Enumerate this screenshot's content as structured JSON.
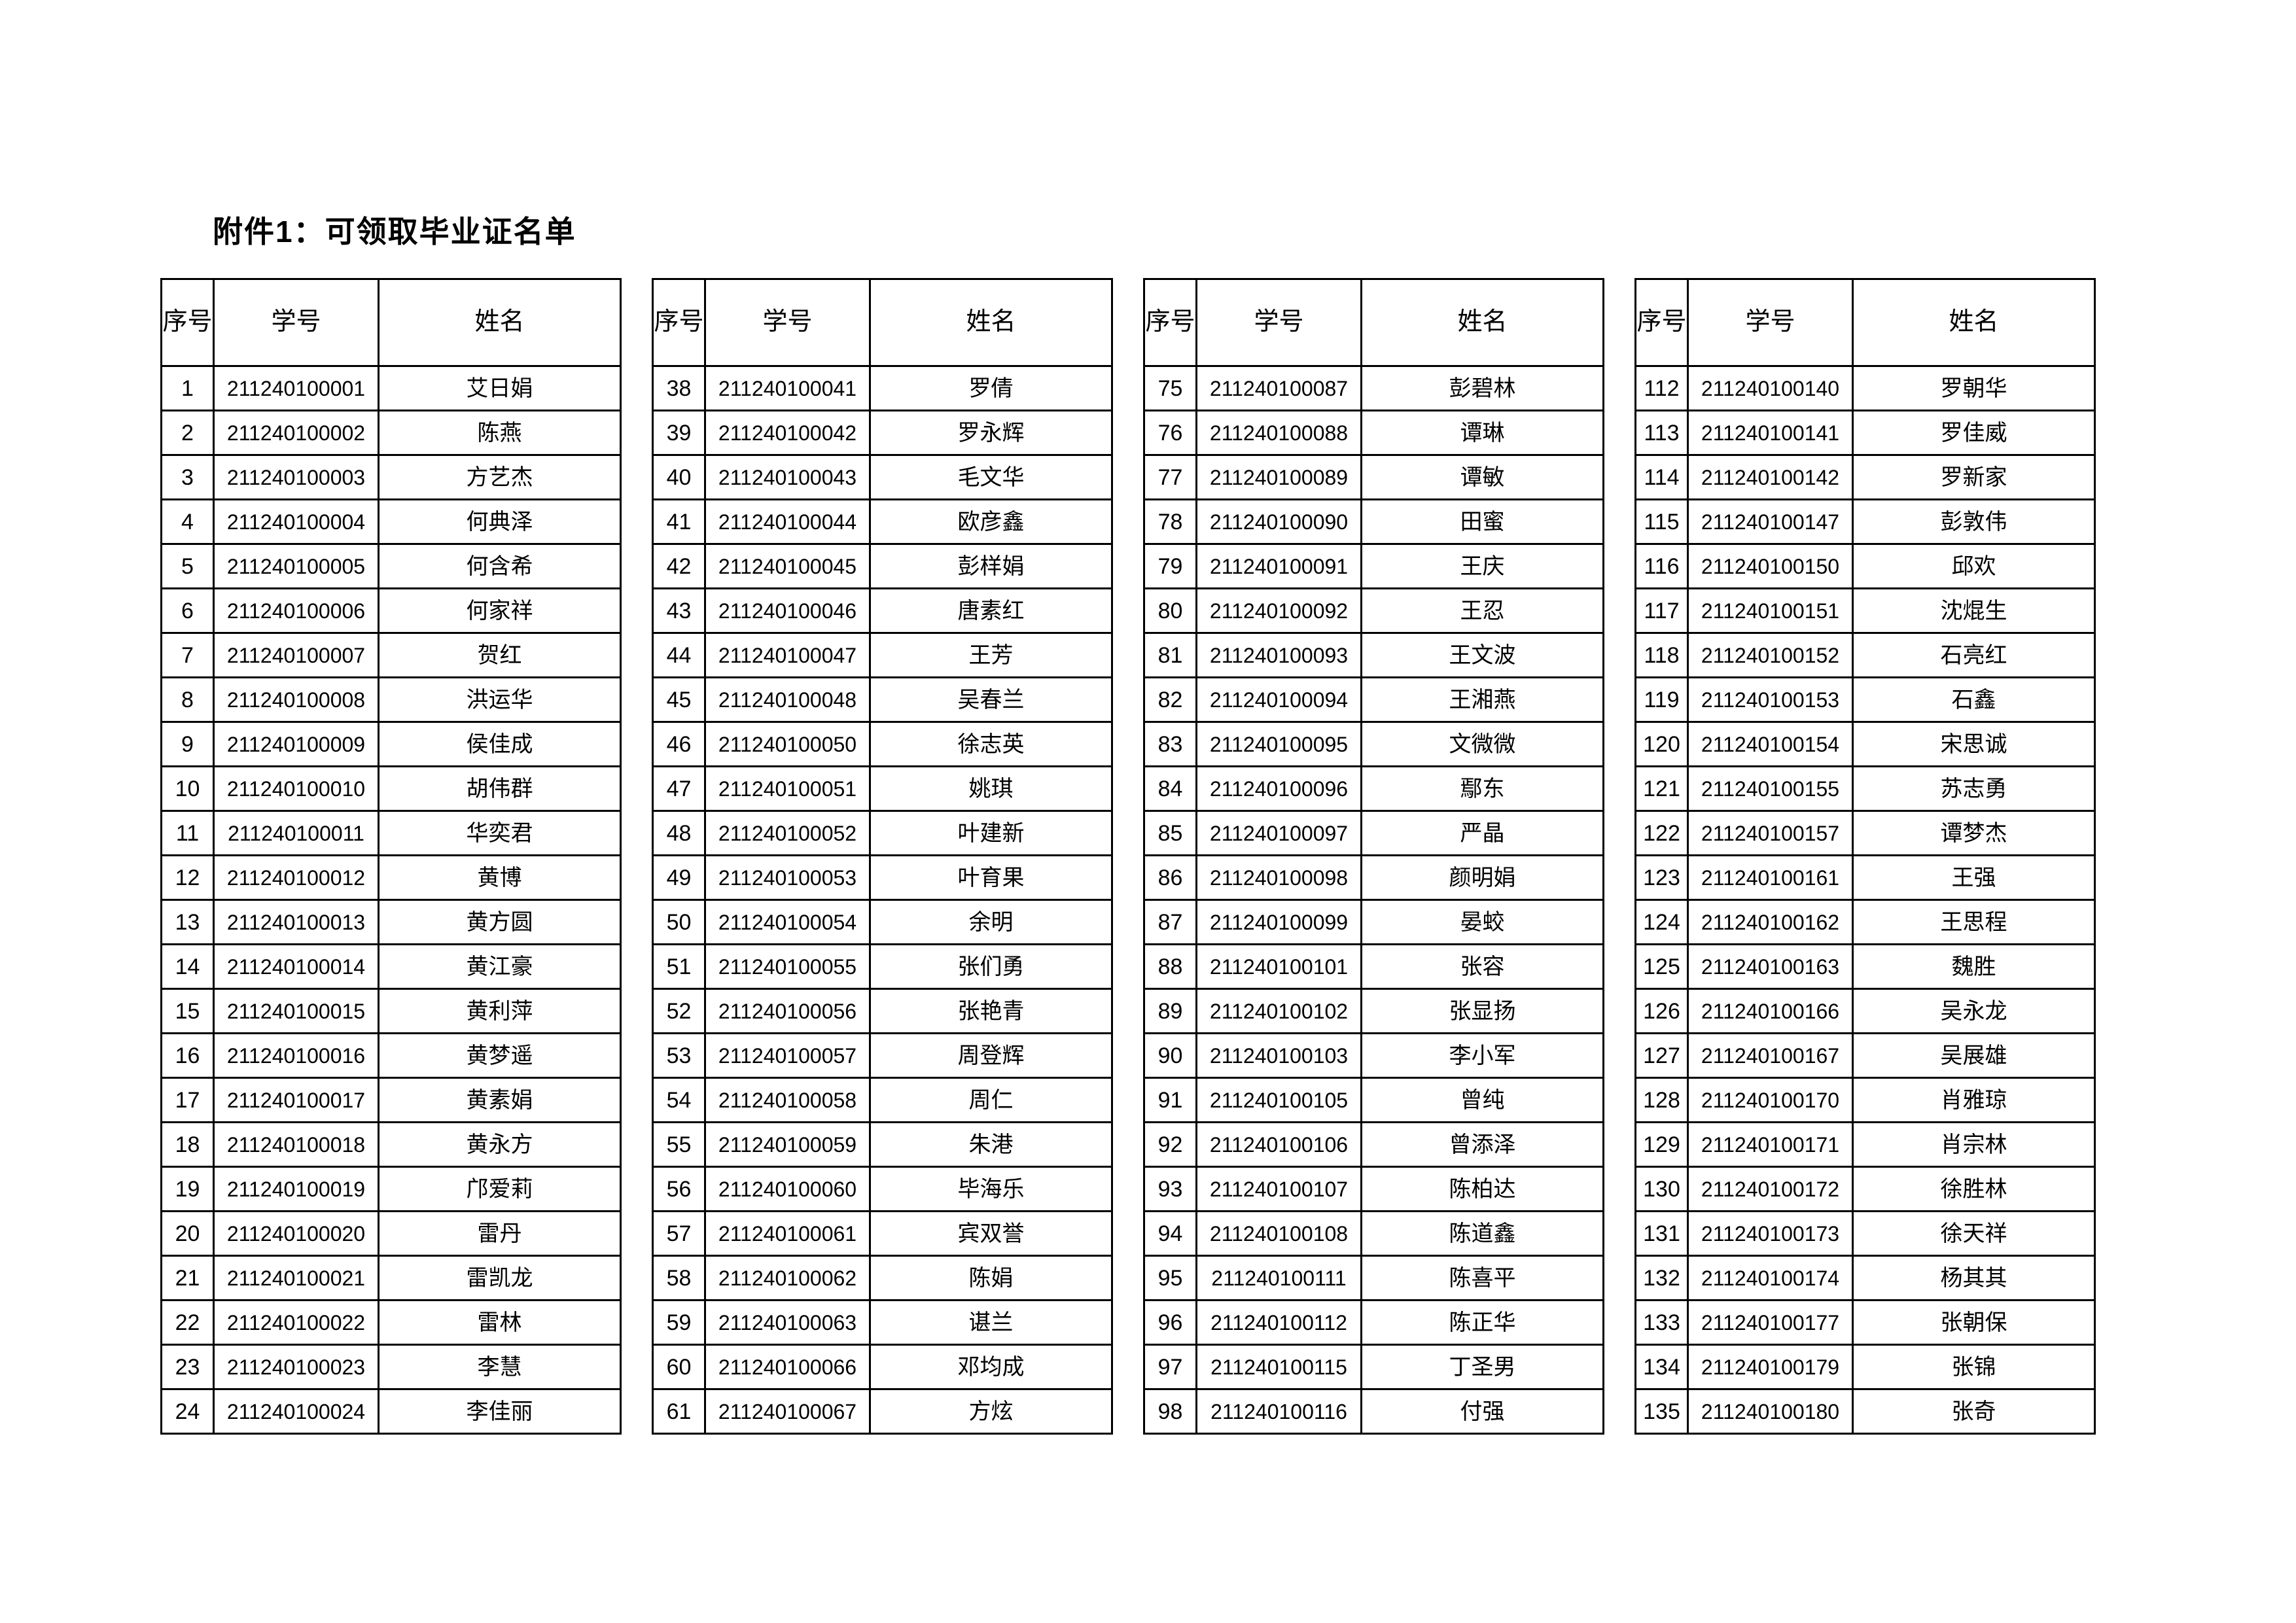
{
  "title": "附件1：可领取毕业证名单",
  "columns": {
    "seq": "序号",
    "student_id": "学号",
    "name": "姓名"
  },
  "tables": [
    {
      "rows": [
        {
          "seq": "1",
          "student_id": "211240100001",
          "name": "艾日娟"
        },
        {
          "seq": "2",
          "student_id": "211240100002",
          "name": "陈燕"
        },
        {
          "seq": "3",
          "student_id": "211240100003",
          "name": "方艺杰"
        },
        {
          "seq": "4",
          "student_id": "211240100004",
          "name": "何典泽"
        },
        {
          "seq": "5",
          "student_id": "211240100005",
          "name": "何含希"
        },
        {
          "seq": "6",
          "student_id": "211240100006",
          "name": "何家祥"
        },
        {
          "seq": "7",
          "student_id": "211240100007",
          "name": "贺红"
        },
        {
          "seq": "8",
          "student_id": "211240100008",
          "name": "洪运华"
        },
        {
          "seq": "9",
          "student_id": "211240100009",
          "name": "侯佳成"
        },
        {
          "seq": "10",
          "student_id": "211240100010",
          "name": "胡伟群"
        },
        {
          "seq": "11",
          "student_id": "211240100011",
          "name": "华奕君"
        },
        {
          "seq": "12",
          "student_id": "211240100012",
          "name": "黄博"
        },
        {
          "seq": "13",
          "student_id": "211240100013",
          "name": "黄方圆"
        },
        {
          "seq": "14",
          "student_id": "211240100014",
          "name": "黄江豪"
        },
        {
          "seq": "15",
          "student_id": "211240100015",
          "name": "黄利萍"
        },
        {
          "seq": "16",
          "student_id": "211240100016",
          "name": "黄梦遥"
        },
        {
          "seq": "17",
          "student_id": "211240100017",
          "name": "黄素娟"
        },
        {
          "seq": "18",
          "student_id": "211240100018",
          "name": "黄永方"
        },
        {
          "seq": "19",
          "student_id": "211240100019",
          "name": "邝爱莉"
        },
        {
          "seq": "20",
          "student_id": "211240100020",
          "name": "雷丹"
        },
        {
          "seq": "21",
          "student_id": "211240100021",
          "name": "雷凯龙"
        },
        {
          "seq": "22",
          "student_id": "211240100022",
          "name": "雷林"
        },
        {
          "seq": "23",
          "student_id": "211240100023",
          "name": "李慧"
        },
        {
          "seq": "24",
          "student_id": "211240100024",
          "name": "李佳丽"
        }
      ]
    },
    {
      "rows": [
        {
          "seq": "38",
          "student_id": "211240100041",
          "name": "罗倩"
        },
        {
          "seq": "39",
          "student_id": "211240100042",
          "name": "罗永辉"
        },
        {
          "seq": "40",
          "student_id": "211240100043",
          "name": "毛文华"
        },
        {
          "seq": "41",
          "student_id": "211240100044",
          "name": "欧彦鑫"
        },
        {
          "seq": "42",
          "student_id": "211240100045",
          "name": "彭样娟"
        },
        {
          "seq": "43",
          "student_id": "211240100046",
          "name": "唐素红"
        },
        {
          "seq": "44",
          "student_id": "211240100047",
          "name": "王芳"
        },
        {
          "seq": "45",
          "student_id": "211240100048",
          "name": "吴春兰"
        },
        {
          "seq": "46",
          "student_id": "211240100050",
          "name": "徐志英"
        },
        {
          "seq": "47",
          "student_id": "211240100051",
          "name": "姚琪"
        },
        {
          "seq": "48",
          "student_id": "211240100052",
          "name": "叶建新"
        },
        {
          "seq": "49",
          "student_id": "211240100053",
          "name": "叶育果"
        },
        {
          "seq": "50",
          "student_id": "211240100054",
          "name": "余明"
        },
        {
          "seq": "51",
          "student_id": "211240100055",
          "name": "张们勇"
        },
        {
          "seq": "52",
          "student_id": "211240100056",
          "name": "张艳青"
        },
        {
          "seq": "53",
          "student_id": "211240100057",
          "name": "周登辉"
        },
        {
          "seq": "54",
          "student_id": "211240100058",
          "name": "周仁"
        },
        {
          "seq": "55",
          "student_id": "211240100059",
          "name": "朱港"
        },
        {
          "seq": "56",
          "student_id": "211240100060",
          "name": "毕海乐"
        },
        {
          "seq": "57",
          "student_id": "211240100061",
          "name": "宾双誉"
        },
        {
          "seq": "58",
          "student_id": "211240100062",
          "name": "陈娟"
        },
        {
          "seq": "59",
          "student_id": "211240100063",
          "name": "谌兰"
        },
        {
          "seq": "60",
          "student_id": "211240100066",
          "name": "邓均成"
        },
        {
          "seq": "61",
          "student_id": "211240100067",
          "name": "方炫"
        }
      ]
    },
    {
      "rows": [
        {
          "seq": "75",
          "student_id": "211240100087",
          "name": "彭碧林"
        },
        {
          "seq": "76",
          "student_id": "211240100088",
          "name": "谭琳"
        },
        {
          "seq": "77",
          "student_id": "211240100089",
          "name": "谭敏"
        },
        {
          "seq": "78",
          "student_id": "211240100090",
          "name": "田蜜"
        },
        {
          "seq": "79",
          "student_id": "211240100091",
          "name": "王庆"
        },
        {
          "seq": "80",
          "student_id": "211240100092",
          "name": "王忍"
        },
        {
          "seq": "81",
          "student_id": "211240100093",
          "name": "王文波"
        },
        {
          "seq": "82",
          "student_id": "211240100094",
          "name": "王湘燕"
        },
        {
          "seq": "83",
          "student_id": "211240100095",
          "name": "文微微"
        },
        {
          "seq": "84",
          "student_id": "211240100096",
          "name": "鄢东"
        },
        {
          "seq": "85",
          "student_id": "211240100097",
          "name": "严晶"
        },
        {
          "seq": "86",
          "student_id": "211240100098",
          "name": "颜明娟"
        },
        {
          "seq": "87",
          "student_id": "211240100099",
          "name": "晏蛟"
        },
        {
          "seq": "88",
          "student_id": "211240100101",
          "name": "张容"
        },
        {
          "seq": "89",
          "student_id": "211240100102",
          "name": "张显扬"
        },
        {
          "seq": "90",
          "student_id": "211240100103",
          "name": "李小军"
        },
        {
          "seq": "91",
          "student_id": "211240100105",
          "name": "曾纯"
        },
        {
          "seq": "92",
          "student_id": "211240100106",
          "name": "曾添泽"
        },
        {
          "seq": "93",
          "student_id": "211240100107",
          "name": "陈柏达"
        },
        {
          "seq": "94",
          "student_id": "211240100108",
          "name": "陈道鑫"
        },
        {
          "seq": "95",
          "student_id": "211240100111",
          "name": "陈喜平"
        },
        {
          "seq": "96",
          "student_id": "211240100112",
          "name": "陈正华"
        },
        {
          "seq": "97",
          "student_id": "211240100115",
          "name": "丁圣男"
        },
        {
          "seq": "98",
          "student_id": "211240100116",
          "name": "付强"
        }
      ]
    },
    {
      "rows": [
        {
          "seq": "112",
          "student_id": "211240100140",
          "name": "罗朝华"
        },
        {
          "seq": "113",
          "student_id": "211240100141",
          "name": "罗佳威"
        },
        {
          "seq": "114",
          "student_id": "211240100142",
          "name": "罗新家"
        },
        {
          "seq": "115",
          "student_id": "211240100147",
          "name": "彭敦伟"
        },
        {
          "seq": "116",
          "student_id": "211240100150",
          "name": "邱欢"
        },
        {
          "seq": "117",
          "student_id": "211240100151",
          "name": "沈焜生"
        },
        {
          "seq": "118",
          "student_id": "211240100152",
          "name": "石亮红"
        },
        {
          "seq": "119",
          "student_id": "211240100153",
          "name": "石鑫"
        },
        {
          "seq": "120",
          "student_id": "211240100154",
          "name": "宋思诚"
        },
        {
          "seq": "121",
          "student_id": "211240100155",
          "name": "苏志勇"
        },
        {
          "seq": "122",
          "student_id": "211240100157",
          "name": "谭梦杰"
        },
        {
          "seq": "123",
          "student_id": "211240100161",
          "name": "王强"
        },
        {
          "seq": "124",
          "student_id": "211240100162",
          "name": "王思程"
        },
        {
          "seq": "125",
          "student_id": "211240100163",
          "name": "魏胜"
        },
        {
          "seq": "126",
          "student_id": "211240100166",
          "name": "吴永龙"
        },
        {
          "seq": "127",
          "student_id": "211240100167",
          "name": "吴展雄"
        },
        {
          "seq": "128",
          "student_id": "211240100170",
          "name": "肖雅琼"
        },
        {
          "seq": "129",
          "student_id": "211240100171",
          "name": "肖宗林"
        },
        {
          "seq": "130",
          "student_id": "211240100172",
          "name": "徐胜林"
        },
        {
          "seq": "131",
          "student_id": "211240100173",
          "name": "徐天祥"
        },
        {
          "seq": "132",
          "student_id": "211240100174",
          "name": "杨其其"
        },
        {
          "seq": "133",
          "student_id": "211240100177",
          "name": "张朝保"
        },
        {
          "seq": "134",
          "student_id": "211240100179",
          "name": "张锦"
        },
        {
          "seq": "135",
          "student_id": "211240100180",
          "name": "张奇"
        }
      ]
    }
  ]
}
